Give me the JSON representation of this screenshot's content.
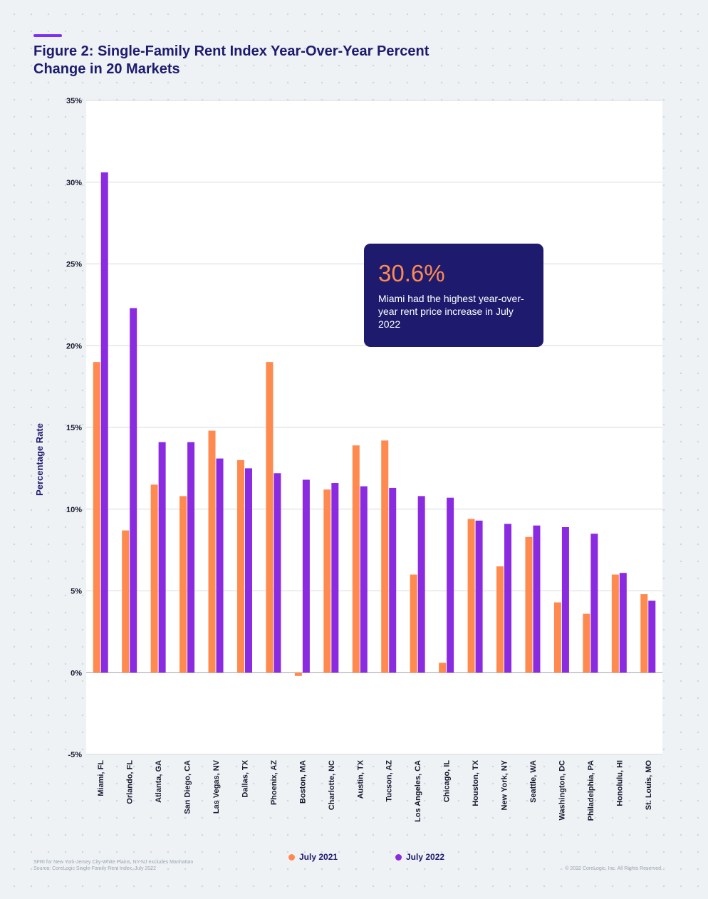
{
  "header": {
    "title": "Figure 2: Single-Family Rent Index Year-Over-Year Percent Change in 20 Markets"
  },
  "callout": {
    "value": "30.6%",
    "text": "Miami had the highest year-over-year rent price increase in July 2022"
  },
  "footer": {
    "note_line1": "SFRI for New York-Jersey City-White Plains, NY-NJ excludes Manhattan",
    "note_line2": "Source: CoreLogic Single-Family Rent Index, July 2022",
    "copyright": "© 2022 CoreLogic, Inc. All Rights Reserved."
  },
  "colors": {
    "july_2021": "#ff8a50",
    "july_2022": "#8a2be2",
    "title": "#1e1b6e"
  },
  "chart_data": {
    "type": "bar",
    "ylabel": "Percentage Rate",
    "xlabel": "",
    "ylim": [
      -5,
      35
    ],
    "yticks": [
      "35%",
      "30%",
      "25%",
      "20%",
      "15%",
      "10%",
      "5%",
      "0%",
      "-5%"
    ],
    "grid": true,
    "legend_position": "bottom",
    "categories": [
      "Miami, FL",
      "Orlando, FL",
      "Atlanta, GA",
      "San Diego, CA",
      "Las Vegas, NV",
      "Dallas, TX",
      "Phoenix, AZ",
      "Boston, MA",
      "Charlotte, NC",
      "Austin, TX",
      "Tucson, AZ",
      "Los Angeles, CA",
      "Chicago, IL",
      "Houston, TX",
      "New York, NY",
      "Seattle, WA",
      "Washington, DC",
      "Philadelphia, PA",
      "Honolulu, HI",
      "St. Louis, MO"
    ],
    "series": [
      {
        "name": "July 2021",
        "color": "#ff8a50",
        "values": [
          19.0,
          8.7,
          11.5,
          10.8,
          14.8,
          13.0,
          19.0,
          -0.2,
          11.2,
          13.9,
          14.2,
          6.0,
          0.6,
          9.4,
          6.5,
          8.3,
          4.3,
          3.6,
          6.0,
          4.8
        ]
      },
      {
        "name": "July 2022",
        "color": "#8a2be2",
        "values": [
          30.6,
          22.3,
          14.1,
          14.1,
          13.1,
          12.5,
          12.2,
          11.8,
          11.6,
          11.4,
          11.3,
          10.8,
          10.7,
          9.3,
          9.1,
          9.0,
          8.9,
          8.5,
          6.1,
          4.4
        ]
      }
    ]
  }
}
